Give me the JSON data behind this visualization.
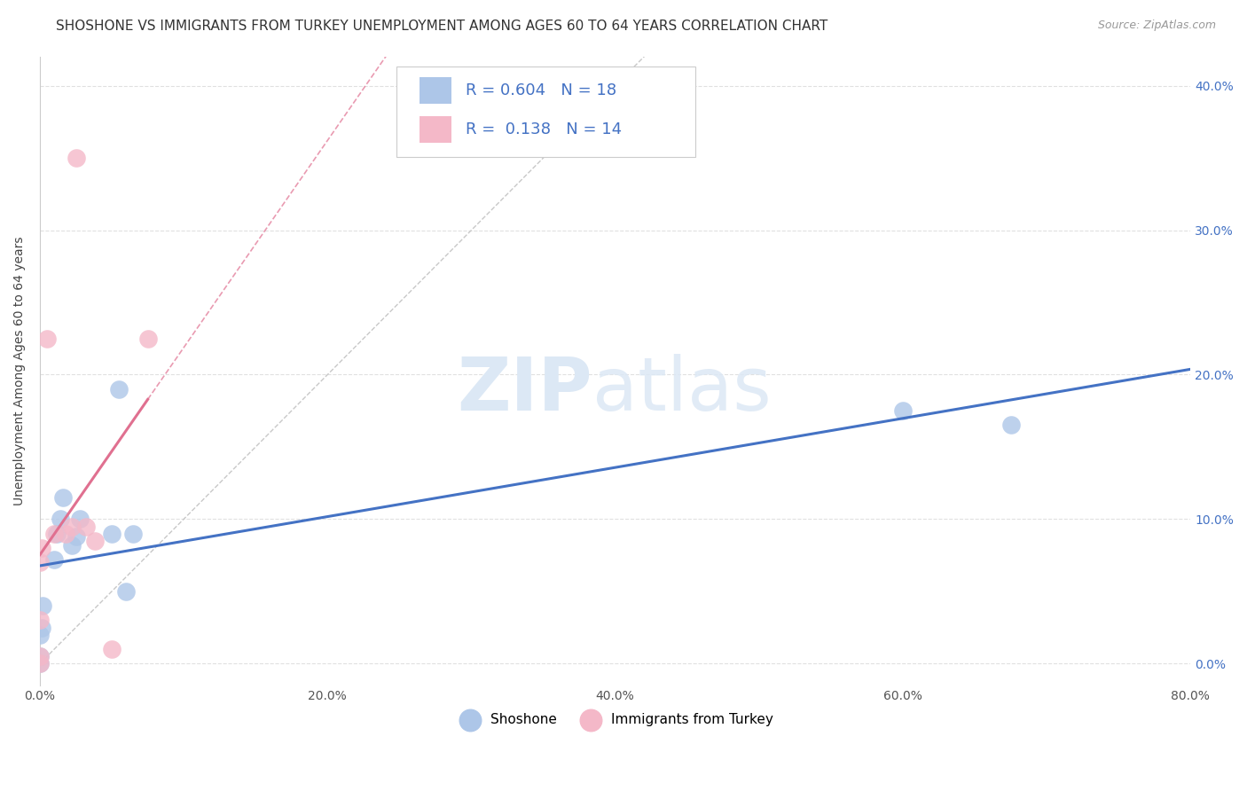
{
  "title": "SHOSHONE VS IMMIGRANTS FROM TURKEY UNEMPLOYMENT AMONG AGES 60 TO 64 YEARS CORRELATION CHART",
  "source": "Source: ZipAtlas.com",
  "ylabel": "Unemployment Among Ages 60 to 64 years",
  "xlim": [
    0.0,
    0.8
  ],
  "ylim": [
    -0.015,
    0.42
  ],
  "shoshone_R": 0.604,
  "shoshone_N": 18,
  "turkey_R": 0.138,
  "turkey_N": 14,
  "shoshone_color": "#adc6e8",
  "shoshone_line_color": "#4472c4",
  "turkey_color": "#f4b8c8",
  "turkey_line_color": "#e07090",
  "diagonal_color": "#c8c8c8",
  "shoshone_x": [
    0.0,
    0.0,
    0.0,
    0.001,
    0.002,
    0.01,
    0.012,
    0.014,
    0.016,
    0.022,
    0.025,
    0.028,
    0.05,
    0.055,
    0.06,
    0.065,
    0.6,
    0.675
  ],
  "shoshone_y": [
    0.0,
    0.005,
    0.02,
    0.025,
    0.04,
    0.072,
    0.09,
    0.1,
    0.115,
    0.082,
    0.088,
    0.1,
    0.09,
    0.19,
    0.05,
    0.09,
    0.175,
    0.165
  ],
  "turkey_x": [
    0.0,
    0.0,
    0.0,
    0.0,
    0.001,
    0.005,
    0.01,
    0.018,
    0.022,
    0.025,
    0.032,
    0.038,
    0.05,
    0.075
  ],
  "turkey_y": [
    0.0,
    0.005,
    0.03,
    0.07,
    0.08,
    0.225,
    0.09,
    0.09,
    0.095,
    0.35,
    0.095,
    0.085,
    0.01,
    0.225
  ],
  "grid_color": "#e0e0e0",
  "background_color": "#ffffff"
}
